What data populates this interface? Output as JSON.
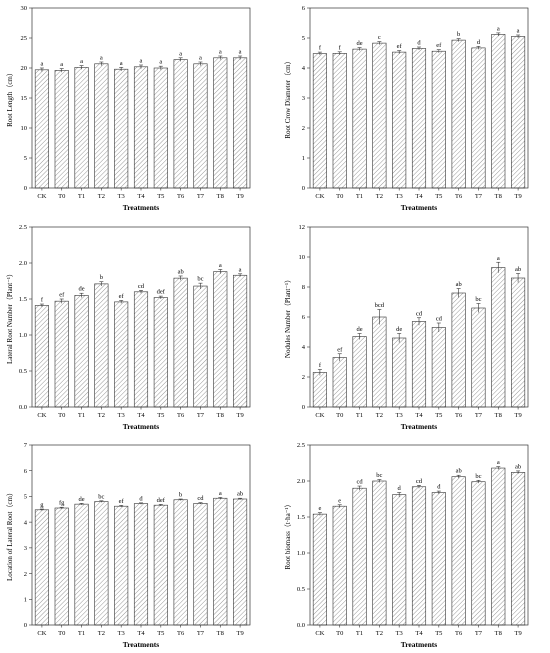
{
  "chart_data": [
    {
      "type": "bar",
      "categories": [
        "CK",
        "T0",
        "T1",
        "T2",
        "T3",
        "T4",
        "T5",
        "T6",
        "T7",
        "T8",
        "T9"
      ],
      "values": [
        19.7,
        19.6,
        20.1,
        20.7,
        19.8,
        20.2,
        20.0,
        21.4,
        20.7,
        21.7,
        21.7
      ],
      "errors": [
        0.3,
        0.3,
        0.3,
        0.3,
        0.3,
        0.3,
        0.3,
        0.3,
        0.3,
        0.3,
        0.3
      ],
      "labels": [
        "a",
        "a",
        "a",
        "a",
        "a",
        "a",
        "a",
        "a",
        "a",
        "a",
        "a"
      ],
      "xlabel": "Treatments",
      "ylabel": "Root Length（cm）",
      "ylim": [
        0,
        30
      ],
      "yticks": [
        0,
        5,
        10,
        15,
        20,
        25,
        30
      ]
    },
    {
      "type": "bar",
      "categories": [
        "CK",
        "T0",
        "T1",
        "T2",
        "T3",
        "T4",
        "T5",
        "T6",
        "T7",
        "T8",
        "T9"
      ],
      "values": [
        4.48,
        4.49,
        4.63,
        4.83,
        4.53,
        4.65,
        4.56,
        4.93,
        4.67,
        5.12,
        5.05
      ],
      "errors": [
        0.05,
        0.05,
        0.05,
        0.05,
        0.05,
        0.05,
        0.05,
        0.05,
        0.05,
        0.05,
        0.05
      ],
      "labels": [
        "f",
        "f",
        "de",
        "c",
        "ef",
        "d",
        "ef",
        "b",
        "d",
        "a",
        "a"
      ],
      "xlabel": "Treatments",
      "ylabel": "Root Crow Diameter（cm）",
      "ylim": [
        0,
        6
      ],
      "yticks": [
        0,
        1,
        2,
        3,
        4,
        5,
        6
      ]
    },
    {
      "type": "bar",
      "categories": [
        "CK",
        "T0",
        "T1",
        "T2",
        "T3",
        "T4",
        "T5",
        "T6",
        "T7",
        "T8",
        "T9"
      ],
      "values": [
        1.41,
        1.47,
        1.55,
        1.71,
        1.46,
        1.6,
        1.52,
        1.79,
        1.68,
        1.88,
        1.83
      ],
      "errors": [
        0.02,
        0.03,
        0.03,
        0.03,
        0.02,
        0.02,
        0.02,
        0.03,
        0.04,
        0.03,
        0.02
      ],
      "labels": [
        "f",
        "ef",
        "de",
        "b",
        "ef",
        "cd",
        "def",
        "ab",
        "bc",
        "a",
        "a"
      ],
      "xlabel": "Treatments",
      "ylabel": "Lateral Root Number（Plant⁻¹）",
      "ylim": [
        0,
        2.5
      ],
      "yticks": [
        0.0,
        0.5,
        1.0,
        1.5,
        2.0,
        2.5
      ],
      "ytick_labels": [
        "0.0",
        "0.5",
        "1.0",
        "1.5",
        "2.0",
        "2.5"
      ]
    },
    {
      "type": "bar",
      "categories": [
        "CK",
        "T0",
        "T1",
        "T2",
        "T3",
        "T4",
        "T5",
        "T6",
        "T7",
        "T8",
        "T9"
      ],
      "values": [
        2.3,
        3.3,
        4.7,
        6.0,
        4.6,
        5.7,
        5.3,
        7.6,
        6.6,
        9.3,
        8.6
      ],
      "errors": [
        0.2,
        0.25,
        0.2,
        0.5,
        0.3,
        0.25,
        0.3,
        0.3,
        0.3,
        0.35,
        0.3
      ],
      "labels": [
        "f",
        "ef",
        "de",
        "bcd",
        "de",
        "cd",
        "cd",
        "ab",
        "bc",
        "a",
        "ab"
      ],
      "xlabel": "Treatments",
      "ylabel": "Nodules Number（Plant⁻¹）",
      "ylim": [
        0,
        12
      ],
      "yticks": [
        0,
        2,
        4,
        6,
        8,
        10,
        12
      ]
    },
    {
      "type": "bar",
      "categories": [
        "CK",
        "T0",
        "T1",
        "T2",
        "T3",
        "T4",
        "T5",
        "T6",
        "T7",
        "T8",
        "T9"
      ],
      "values": [
        4.48,
        4.55,
        4.7,
        4.8,
        4.62,
        4.72,
        4.66,
        4.87,
        4.73,
        4.93,
        4.9
      ],
      "errors": [
        0.03,
        0.03,
        0.03,
        0.03,
        0.03,
        0.03,
        0.03,
        0.03,
        0.03,
        0.03,
        0.03
      ],
      "labels": [
        "g",
        "fg",
        "de",
        "bc",
        "ef",
        "d",
        "def",
        "b",
        "cd",
        "a",
        "ab"
      ],
      "xlabel": "Treatments",
      "ylabel": "Location of Lateral Root（cm）",
      "ylim": [
        0,
        7
      ],
      "yticks": [
        0,
        1,
        2,
        3,
        4,
        5,
        6,
        7
      ]
    },
    {
      "type": "bar",
      "categories": [
        "CK",
        "T0",
        "T1",
        "T2",
        "T3",
        "T4",
        "T5",
        "T6",
        "T7",
        "T8",
        "T9"
      ],
      "values": [
        1.54,
        1.65,
        1.9,
        2.0,
        1.81,
        1.92,
        1.84,
        2.06,
        1.99,
        2.18,
        2.12
      ],
      "errors": [
        0.02,
        0.02,
        0.03,
        0.02,
        0.03,
        0.02,
        0.02,
        0.02,
        0.02,
        0.02,
        0.02
      ],
      "labels": [
        "e",
        "e",
        "cd",
        "bc",
        "d",
        "cd",
        "d",
        "ab",
        "bc",
        "a",
        "ab"
      ],
      "xlabel": "Treatments",
      "ylabel": "Root biomass（t·ha⁻¹）",
      "ylim": [
        0,
        2.5
      ],
      "yticks": [
        0.0,
        0.5,
        1.0,
        1.5,
        2.0,
        2.5
      ],
      "ytick_labels": [
        "0.0",
        "0.5",
        "1.0",
        "1.5",
        "2.0",
        "2.5"
      ]
    }
  ]
}
